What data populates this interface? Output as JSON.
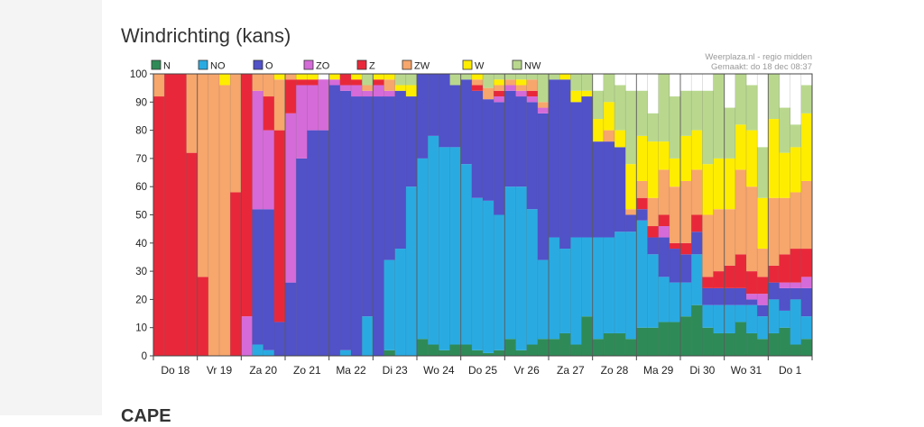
{
  "page": {
    "heading": "Windrichting (kans)",
    "next_heading": "CAPE"
  },
  "chart_data": {
    "type": "bar",
    "stacked": true,
    "title": "",
    "xlabel": "",
    "ylabel": "",
    "ylim": [
      0,
      100
    ],
    "yticks": [
      0,
      10,
      20,
      30,
      40,
      50,
      60,
      70,
      80,
      90,
      100
    ],
    "grid": false,
    "legend_position": "top",
    "credit": "Weerplaza.nl - regio midden",
    "made": "Gemaakt: do 18 dec 08:37",
    "day_labels": [
      "Do 18",
      "Vr 19",
      "Za 20",
      "Zo 21",
      "Ma 22",
      "Di 23",
      "Wo 24",
      "Do 25",
      "Vr 26",
      "Za 27",
      "Zo 28",
      "Ma 29",
      "Di 30",
      "Wo 31",
      "Do 1"
    ],
    "periods_per_day": 4,
    "series": [
      {
        "name": "N",
        "color": "#2e8b57",
        "values": [
          0,
          0,
          0,
          0,
          0,
          0,
          0,
          0,
          0,
          0,
          0,
          0,
          0,
          0,
          0,
          0,
          0,
          0,
          0,
          0,
          0,
          2,
          0,
          0,
          6,
          4,
          2,
          4,
          4,
          2,
          1,
          2,
          6,
          2,
          4,
          6,
          6,
          8,
          4,
          14,
          6,
          8,
          8,
          6,
          10,
          10,
          12,
          12,
          14,
          18,
          10,
          8,
          8,
          12,
          8,
          6,
          8,
          10,
          4,
          6
        ]
      },
      {
        "name": "NO",
        "color": "#29abe2",
        "values": [
          0,
          0,
          0,
          0,
          0,
          0,
          0,
          0,
          0,
          4,
          2,
          0,
          0,
          0,
          0,
          0,
          0,
          2,
          0,
          14,
          0,
          32,
          38,
          60,
          64,
          74,
          72,
          70,
          64,
          54,
          54,
          48,
          54,
          58,
          48,
          28,
          36,
          30,
          38,
          28,
          36,
          34,
          36,
          38,
          38,
          26,
          16,
          14,
          12,
          18,
          8,
          10,
          10,
          6,
          10,
          8,
          12,
          6,
          16,
          8
        ]
      },
      {
        "name": "O",
        "color": "#5151c8",
        "values": [
          0,
          0,
          0,
          0,
          0,
          0,
          0,
          0,
          0,
          48,
          50,
          12,
          26,
          70,
          80,
          80,
          96,
          92,
          92,
          78,
          92,
          58,
          56,
          32,
          30,
          22,
          26,
          22,
          30,
          38,
          36,
          40,
          34,
          32,
          38,
          52,
          56,
          60,
          48,
          50,
          34,
          34,
          30,
          6,
          4,
          6,
          14,
          12,
          10,
          8,
          6,
          6,
          6,
          6,
          2,
          4,
          6,
          8,
          4,
          10
        ]
      },
      {
        "name": "ZO",
        "color": "#d56bd8",
        "values": [
          0,
          0,
          0,
          0,
          0,
          0,
          0,
          0,
          14,
          42,
          28,
          0,
          60,
          26,
          16,
          18,
          2,
          2,
          4,
          2,
          4,
          2,
          0,
          0,
          0,
          0,
          0,
          0,
          0,
          0,
          0,
          2,
          2,
          2,
          2,
          2,
          0,
          0,
          0,
          0,
          0,
          0,
          0,
          0,
          0,
          0,
          4,
          0,
          0,
          0,
          0,
          0,
          0,
          0,
          2,
          4,
          0,
          2,
          2,
          4
        ]
      },
      {
        "name": "Z",
        "color": "#e8283a",
        "values": [
          92,
          100,
          100,
          72,
          28,
          0,
          0,
          58,
          86,
          0,
          12,
          68,
          12,
          2,
          2,
          0,
          0,
          4,
          2,
          0,
          2,
          0,
          0,
          0,
          0,
          0,
          0,
          0,
          0,
          2,
          0,
          2,
          0,
          0,
          2,
          0,
          0,
          0,
          0,
          0,
          0,
          0,
          0,
          0,
          4,
          4,
          4,
          2,
          4,
          6,
          4,
          6,
          8,
          12,
          8,
          6,
          6,
          10,
          12,
          10
        ]
      },
      {
        "name": "ZW",
        "color": "#f7a66c",
        "values": [
          8,
          0,
          0,
          28,
          72,
          100,
          96,
          42,
          0,
          6,
          8,
          18,
          2,
          0,
          0,
          0,
          0,
          0,
          0,
          2,
          0,
          4,
          0,
          0,
          0,
          0,
          0,
          0,
          0,
          2,
          4,
          2,
          2,
          2,
          4,
          2,
          0,
          0,
          0,
          0,
          0,
          4,
          0,
          2,
          6,
          10,
          16,
          20,
          22,
          16,
          22,
          22,
          20,
          30,
          30,
          10,
          24,
          20,
          20,
          24
        ]
      },
      {
        "name": "W",
        "color": "#ffed00",
        "values": [
          0,
          0,
          0,
          0,
          0,
          0,
          4,
          0,
          0,
          0,
          0,
          2,
          0,
          2,
          2,
          0,
          2,
          0,
          2,
          0,
          2,
          2,
          2,
          4,
          0,
          0,
          0,
          0,
          0,
          2,
          0,
          2,
          0,
          2,
          0,
          0,
          0,
          2,
          4,
          2,
          8,
          10,
          6,
          16,
          16,
          20,
          10,
          10,
          16,
          14,
          18,
          18,
          18,
          16,
          20,
          18,
          28,
          16,
          16,
          24
        ]
      },
      {
        "name": "NW",
        "color": "#b9d88e",
        "values": [
          0,
          0,
          0,
          0,
          0,
          0,
          0,
          0,
          0,
          0,
          0,
          0,
          0,
          0,
          0,
          0,
          0,
          0,
          0,
          4,
          0,
          0,
          4,
          4,
          0,
          0,
          0,
          4,
          2,
          0,
          6,
          2,
          6,
          2,
          2,
          10,
          2,
          0,
          6,
          6,
          10,
          10,
          16,
          26,
          16,
          10,
          24,
          22,
          16,
          14,
          26,
          30,
          18,
          18,
          16,
          18,
          16,
          16,
          8,
          10
        ]
      }
    ]
  }
}
